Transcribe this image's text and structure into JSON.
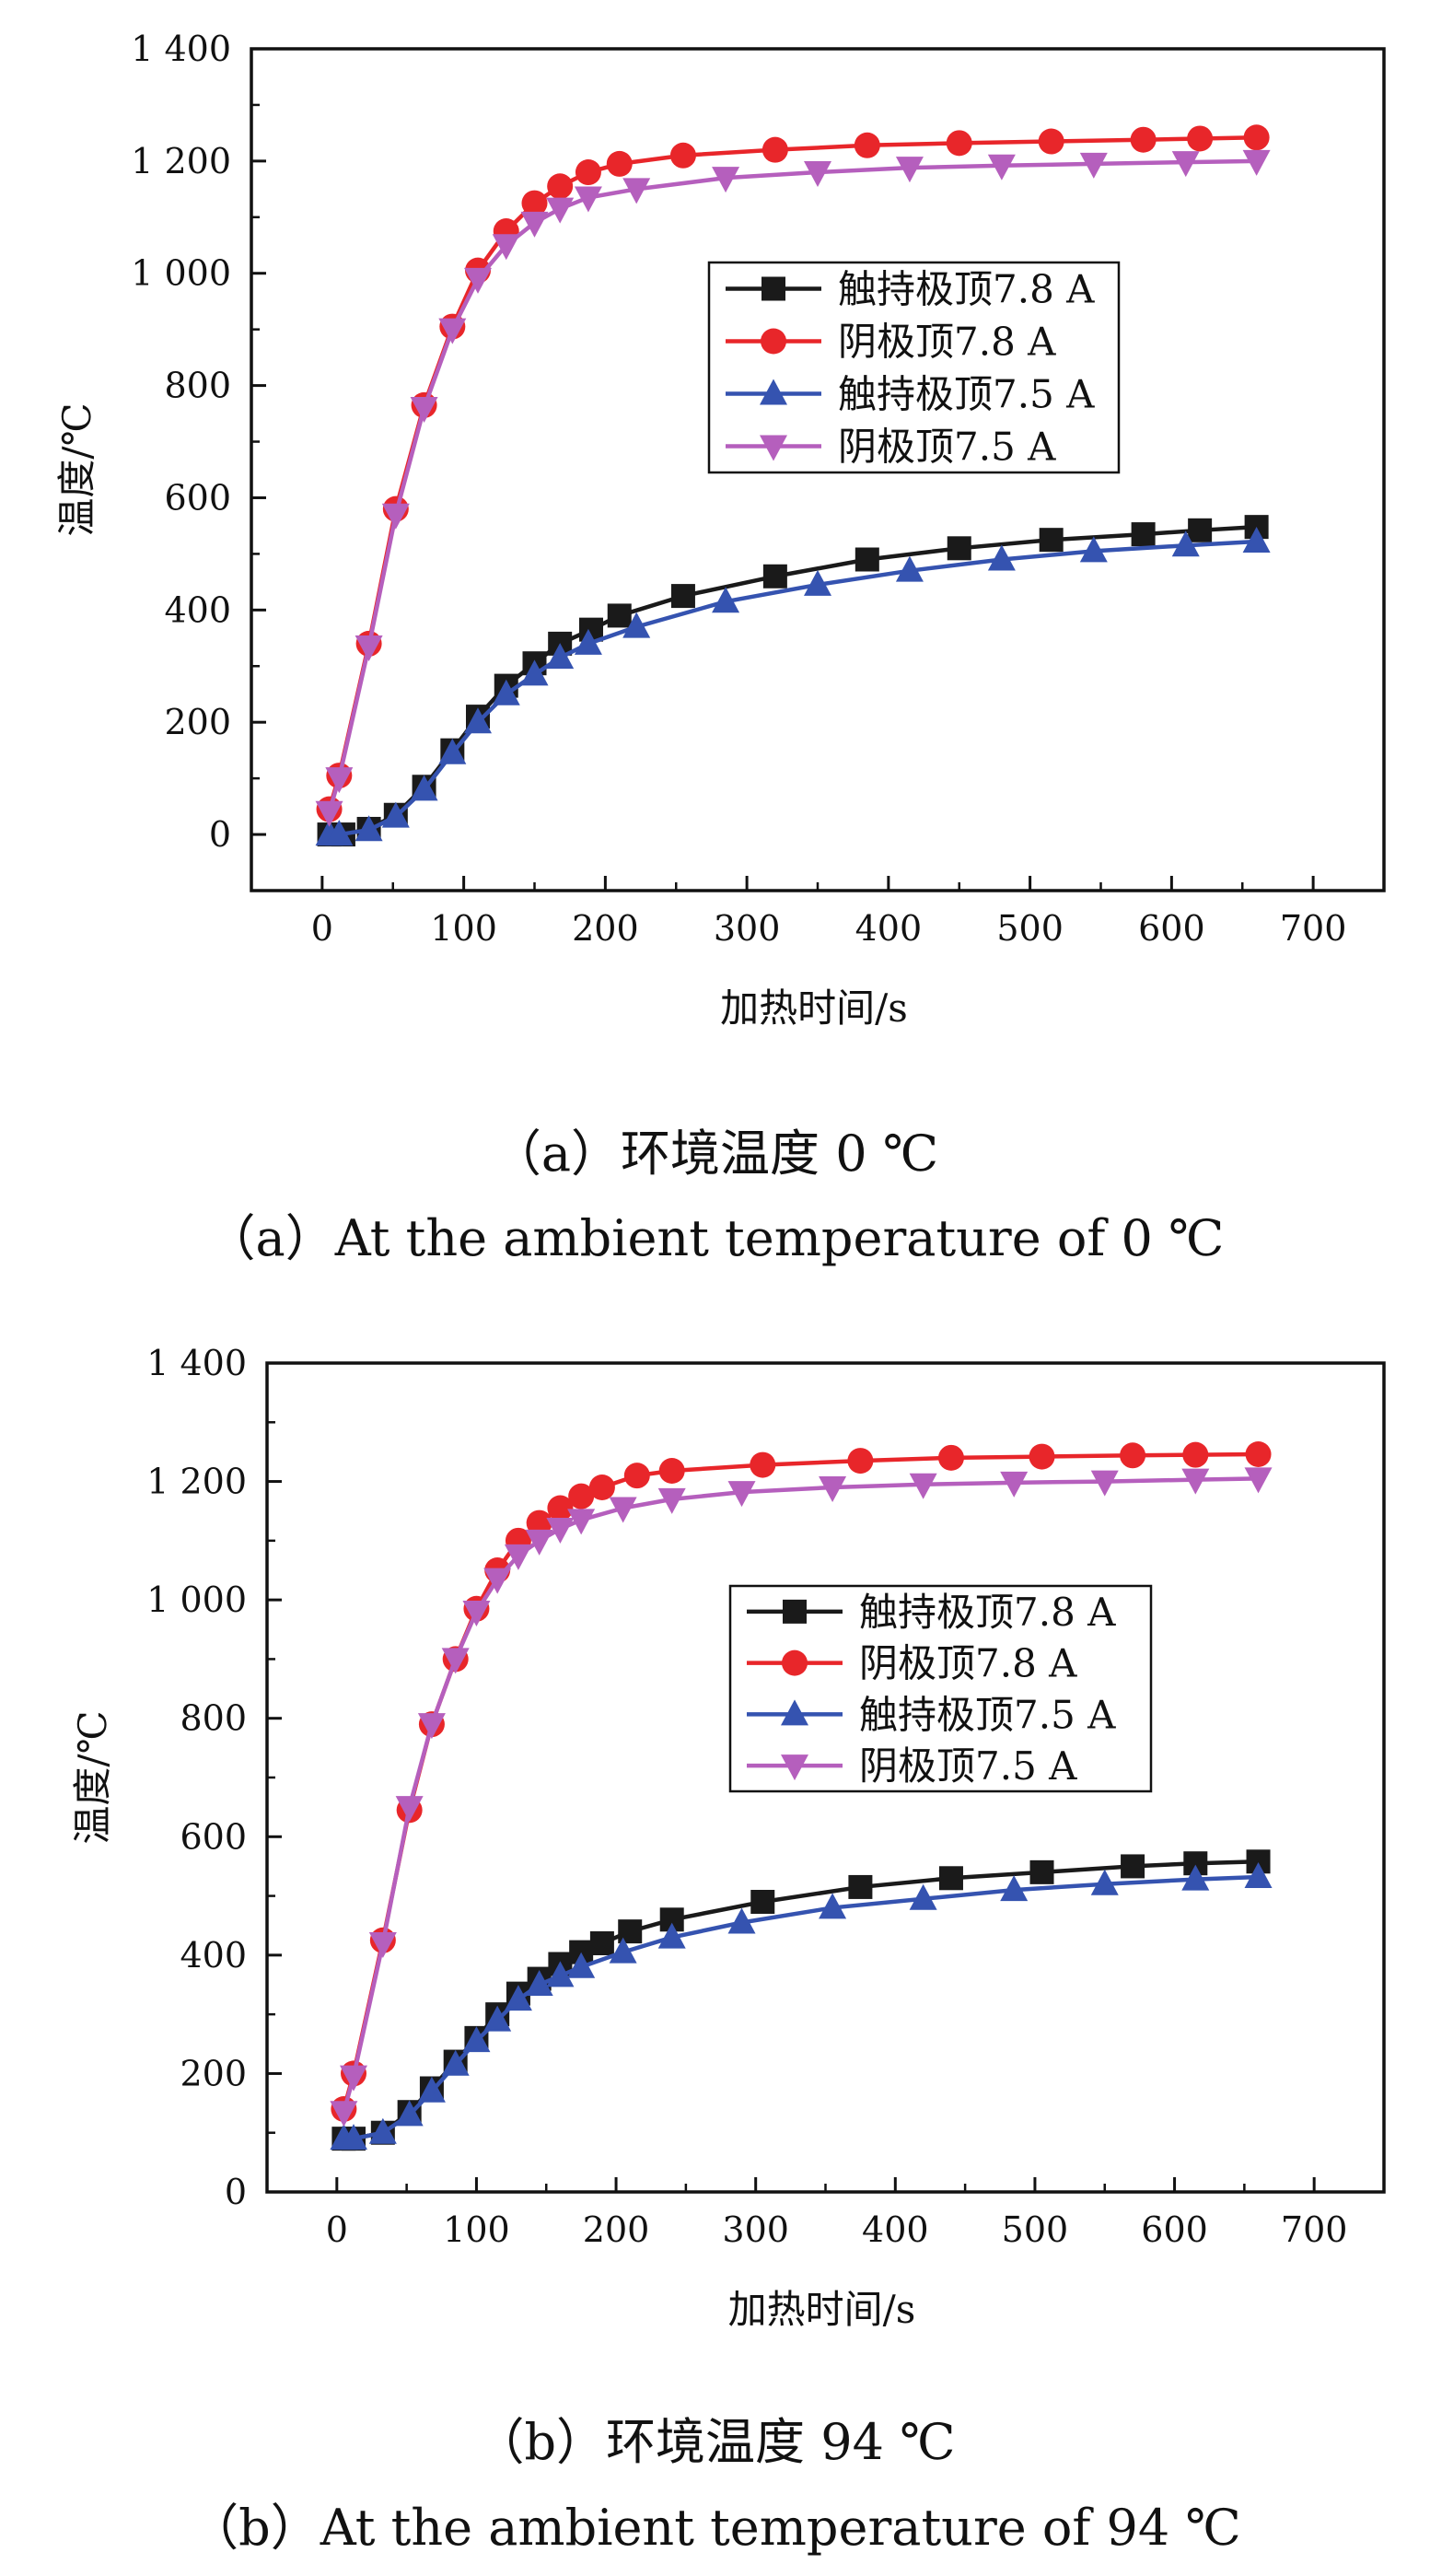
{
  "legend_labels": [
    "触持极顶7.8 A",
    "阴极顶7.8 A",
    "触持极顶7.5 A",
    "阴极顶7.5 A"
  ],
  "colors": {
    "s1": "#1a1a1a",
    "s2": "#e8262a",
    "s3": "#3553b0",
    "s4": "#b55fbd"
  },
  "captions": {
    "a_cn": "（a）环境温度 0 ℃",
    "a_en": "（a）At the ambient temperature of 0 ℃",
    "b_cn": "（b）环境温度 94 ℃",
    "b_en": "（b）At the ambient temperature of 94 ℃"
  },
  "chart_data": [
    {
      "type": "line",
      "xlabel": "加热时间/s",
      "ylabel": "温度/℃",
      "xlim": [
        -50,
        750
      ],
      "ylim": [
        -100,
        1400
      ],
      "xticks": [
        0,
        100,
        200,
        300,
        400,
        500,
        600,
        700
      ],
      "xtick_labels": [
        "0",
        "100",
        "200",
        "300",
        "400",
        "500",
        "600",
        "700"
      ],
      "yticks": [
        0,
        200,
        400,
        600,
        800,
        1000,
        1200,
        1400
      ],
      "ytick_labels": [
        "0",
        "200",
        "400",
        "600",
        "800",
        "1 000",
        "1 200",
        "1 400"
      ],
      "legend_position": "center-right",
      "series": [
        {
          "name": "触持极顶7.8 A",
          "marker": "square",
          "x": [
            5,
            15,
            33,
            52,
            72,
            92,
            110,
            130,
            150,
            168,
            190,
            210,
            255,
            320,
            385,
            450,
            515,
            580,
            620,
            660
          ],
          "y": [
            0,
            0,
            10,
            35,
            85,
            150,
            210,
            265,
            305,
            340,
            365,
            390,
            425,
            460,
            490,
            510,
            525,
            535,
            542,
            548
          ]
        },
        {
          "name": "阴极顶7.8 A",
          "marker": "circle",
          "x": [
            5,
            12,
            33,
            52,
            72,
            92,
            110,
            130,
            150,
            168,
            188,
            210,
            255,
            320,
            385,
            450,
            515,
            580,
            620,
            660
          ],
          "y": [
            45,
            105,
            340,
            580,
            765,
            905,
            1005,
            1075,
            1125,
            1155,
            1180,
            1195,
            1210,
            1220,
            1228,
            1232,
            1235,
            1238,
            1240,
            1242
          ]
        },
        {
          "name": "触持极顶7.5 A",
          "marker": "triangle-up",
          "x": [
            5,
            12,
            33,
            52,
            72,
            92,
            110,
            130,
            150,
            168,
            188,
            222,
            285,
            350,
            415,
            480,
            545,
            610,
            660
          ],
          "y": [
            0,
            0,
            8,
            32,
            80,
            145,
            200,
            250,
            285,
            315,
            340,
            370,
            415,
            445,
            470,
            490,
            505,
            515,
            522
          ]
        },
        {
          "name": "阴极顶7.5 A",
          "marker": "triangle-down",
          "x": [
            5,
            12,
            33,
            52,
            72,
            92,
            110,
            130,
            150,
            168,
            188,
            222,
            285,
            350,
            415,
            480,
            545,
            610,
            660
          ],
          "y": [
            40,
            100,
            335,
            570,
            760,
            900,
            990,
            1050,
            1090,
            1115,
            1135,
            1150,
            1170,
            1180,
            1188,
            1192,
            1195,
            1198,
            1200
          ]
        }
      ]
    },
    {
      "type": "line",
      "xlabel": "加热时间/s",
      "ylabel": "温度/℃",
      "xlim": [
        -50,
        750
      ],
      "ylim": [
        0,
        1400
      ],
      "xticks": [
        0,
        100,
        200,
        300,
        400,
        500,
        600,
        700
      ],
      "xtick_labels": [
        "0",
        "100",
        "200",
        "300",
        "400",
        "500",
        "600",
        "700"
      ],
      "yticks": [
        0,
        200,
        400,
        600,
        800,
        1000,
        1200,
        1400
      ],
      "ytick_labels": [
        "0",
        "200",
        "400",
        "600",
        "800",
        "1 000",
        "1 200",
        "1 400"
      ],
      "legend_position": "center-right",
      "series": [
        {
          "name": "触持极顶7.8 A",
          "marker": "square",
          "x": [
            5,
            12,
            33,
            52,
            68,
            85,
            100,
            115,
            130,
            145,
            160,
            175,
            190,
            210,
            240,
            305,
            375,
            440,
            505,
            570,
            615,
            660
          ],
          "y": [
            90,
            90,
            100,
            135,
            175,
            220,
            260,
            300,
            335,
            360,
            385,
            405,
            420,
            440,
            460,
            490,
            515,
            530,
            540,
            550,
            555,
            558
          ]
        },
        {
          "name": "阴极顶7.8 A",
          "marker": "circle",
          "x": [
            5,
            12,
            33,
            52,
            68,
            85,
            100,
            115,
            130,
            145,
            160,
            175,
            190,
            215,
            240,
            305,
            375,
            440,
            505,
            570,
            615,
            660
          ],
          "y": [
            140,
            200,
            425,
            645,
            790,
            900,
            985,
            1050,
            1100,
            1130,
            1155,
            1175,
            1190,
            1210,
            1218,
            1228,
            1235,
            1240,
            1242,
            1244,
            1245,
            1246
          ]
        },
        {
          "name": "触持极顶7.5 A",
          "marker": "triangle-up",
          "x": [
            5,
            12,
            33,
            52,
            68,
            85,
            100,
            115,
            130,
            145,
            160,
            175,
            205,
            240,
            290,
            355,
            420,
            485,
            550,
            615,
            660
          ],
          "y": [
            90,
            90,
            100,
            130,
            170,
            215,
            255,
            290,
            325,
            350,
            365,
            380,
            405,
            430,
            455,
            480,
            495,
            510,
            520,
            528,
            532
          ]
        },
        {
          "name": "阴极顶7.5 A",
          "marker": "triangle-down",
          "x": [
            5,
            12,
            33,
            52,
            68,
            85,
            100,
            115,
            130,
            145,
            160,
            175,
            205,
            240,
            290,
            355,
            420,
            485,
            550,
            615,
            660
          ],
          "y": [
            135,
            195,
            420,
            650,
            790,
            900,
            980,
            1035,
            1075,
            1100,
            1120,
            1135,
            1155,
            1170,
            1182,
            1190,
            1195,
            1198,
            1200,
            1203,
            1205
          ]
        }
      ]
    }
  ]
}
